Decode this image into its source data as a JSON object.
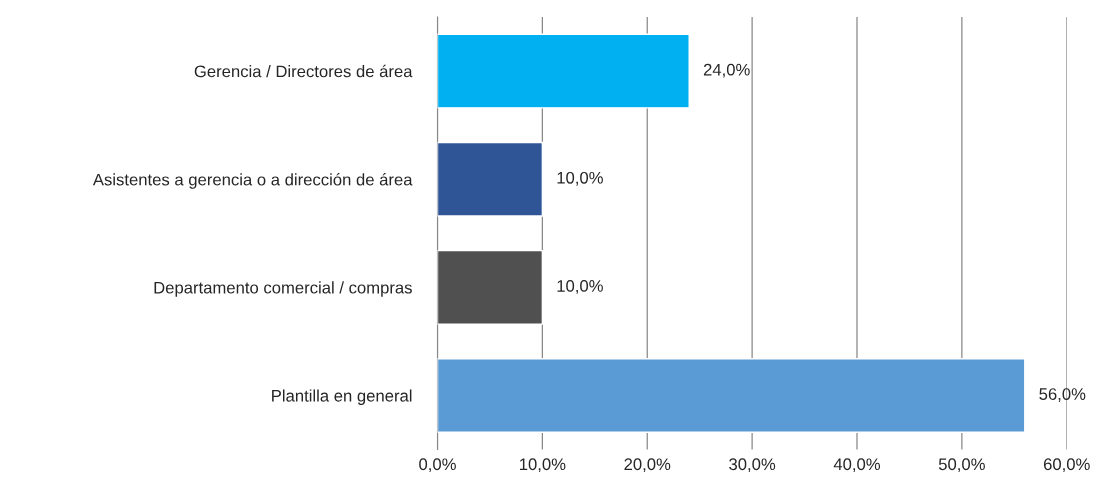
{
  "chart_data": {
    "type": "bar",
    "orientation": "horizontal",
    "categories": [
      "Gerencia / Directores de área",
      "Asistentes a gerencia o a dirección de área",
      "Departamento comercial / compras",
      "Plantilla en general"
    ],
    "values": [
      24.0,
      10.0,
      10.0,
      56.0
    ],
    "colors": [
      "#00b0f0",
      "#2f5597",
      "#505050",
      "#5b9bd5"
    ],
    "value_labels": [
      "24,0%",
      "10,0%",
      "10,0%",
      "56,0%"
    ],
    "xlim": [
      0,
      60
    ],
    "xticks": [
      {
        "value": 0,
        "label": "0,0%"
      },
      {
        "value": 10,
        "label": "10,0%"
      },
      {
        "value": 20,
        "label": "20,0%"
      },
      {
        "value": 30,
        "label": "30,0%"
      },
      {
        "value": 40,
        "label": "40,0%"
      },
      {
        "value": 50,
        "label": "50,0%"
      },
      {
        "value": 60,
        "label": "60,0%"
      }
    ],
    "grid": "x",
    "legend": false
  }
}
